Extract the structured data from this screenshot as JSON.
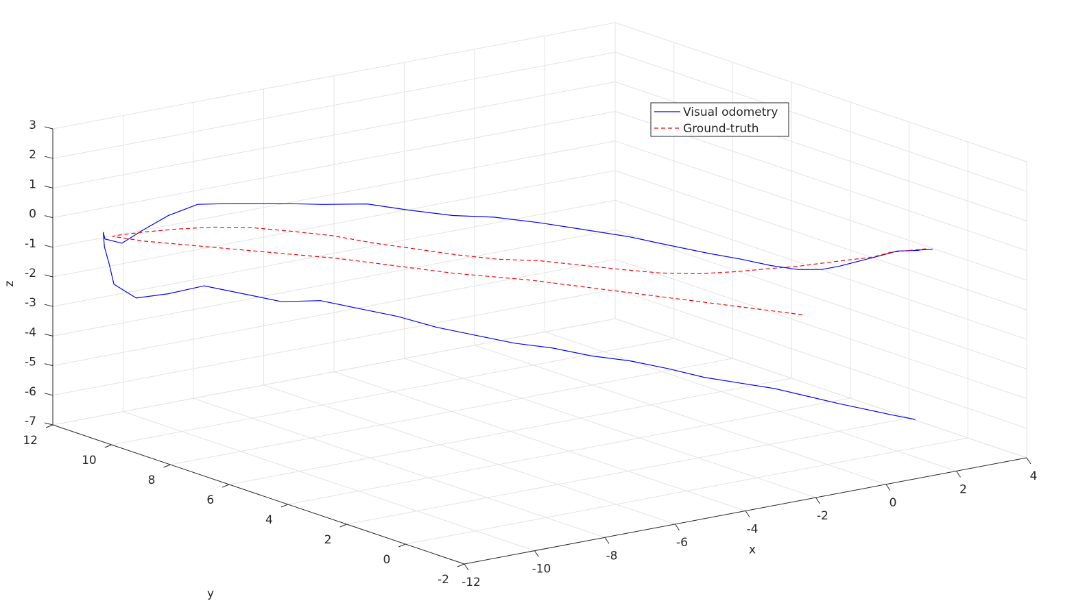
{
  "chart_data": {
    "type": "line",
    "subtype": "3d-trajectory",
    "title": "",
    "xlabel": "x",
    "ylabel": "y",
    "zlabel": "z",
    "xlim": [
      -12,
      4
    ],
    "ylim": [
      -2,
      12
    ],
    "zlim": [
      -7,
      3
    ],
    "x_ticks": [
      -12,
      -10,
      -8,
      -6,
      -4,
      -2,
      0,
      2,
      4
    ],
    "y_ticks": [
      -2,
      0,
      2,
      4,
      6,
      8,
      10,
      12
    ],
    "z_ticks": [
      -7,
      -6,
      -5,
      -4,
      -3,
      -2,
      -1,
      0,
      1,
      2,
      3
    ],
    "grid": true,
    "legend_position": "top-right",
    "series": [
      {
        "name": "Visual odometry",
        "color": "#0000ff",
        "style": "solid",
        "points": [
          [
            3.0,
            0.0,
            -0.4
          ],
          [
            2.8,
            0.2,
            -0.45
          ],
          [
            2.6,
            0.0,
            -0.35
          ],
          [
            2.4,
            0.5,
            -0.5
          ],
          [
            2.0,
            0.6,
            -0.6
          ],
          [
            1.5,
            0.7,
            -0.7
          ],
          [
            1.0,
            0.8,
            -0.8
          ],
          [
            0.6,
            0.9,
            -0.85
          ],
          [
            0.0,
            1.0,
            -0.75
          ],
          [
            -0.6,
            1.2,
            -0.55
          ],
          [
            -1.2,
            1.5,
            -0.3
          ],
          [
            -1.8,
            1.9,
            -0.1
          ],
          [
            -2.4,
            2.5,
            0.1
          ],
          [
            -3.0,
            3.2,
            0.3
          ],
          [
            -3.6,
            4.0,
            0.4
          ],
          [
            -4.2,
            4.8,
            0.5
          ],
          [
            -4.8,
            5.6,
            0.55
          ],
          [
            -5.3,
            6.4,
            0.45
          ],
          [
            -5.9,
            7.2,
            0.5
          ],
          [
            -6.4,
            8.0,
            0.55
          ],
          [
            -7.0,
            8.8,
            0.4
          ],
          [
            -7.6,
            9.6,
            0.3
          ],
          [
            -8.2,
            10.3,
            0.2
          ],
          [
            -8.8,
            10.9,
            0.1
          ],
          [
            -9.3,
            11.3,
            -0.3
          ],
          [
            -9.8,
            11.6,
            -0.8
          ],
          [
            -10.2,
            11.8,
            -1.2
          ],
          [
            -10.6,
            11.9,
            -1.0
          ],
          [
            -10.9,
            11.6,
            -0.6
          ],
          [
            -11.2,
            11.2,
            -0.9
          ],
          [
            -11.4,
            10.8,
            -1.3
          ],
          [
            -11.6,
            10.4,
            -1.8
          ],
          [
            -11.3,
            10.0,
            -2.2
          ],
          [
            -10.8,
            9.5,
            -2.0
          ],
          [
            -10.2,
            9.0,
            -1.7
          ],
          [
            -9.6,
            8.4,
            -1.9
          ],
          [
            -9.0,
            7.8,
            -2.1
          ],
          [
            -8.4,
            7.2,
            -2.0
          ],
          [
            -7.8,
            6.6,
            -2.2
          ],
          [
            -7.2,
            6.0,
            -2.4
          ],
          [
            -6.6,
            5.4,
            -2.7
          ],
          [
            -6.0,
            4.8,
            -2.9
          ],
          [
            -5.4,
            4.2,
            -3.1
          ],
          [
            -4.8,
            3.6,
            -3.2
          ],
          [
            -4.2,
            3.0,
            -3.4
          ],
          [
            -3.6,
            2.4,
            -3.5
          ],
          [
            -3.0,
            1.8,
            -3.7
          ],
          [
            -2.5,
            1.2,
            -3.9
          ],
          [
            -2.0,
            0.6,
            -4.0
          ],
          [
            -1.5,
            0.0,
            -4.1
          ],
          [
            -1.0,
            -0.5,
            -4.3
          ],
          [
            -0.5,
            -1.0,
            -4.5
          ],
          [
            0.0,
            -1.3,
            -4.7
          ],
          [
            0.5,
            -1.6,
            -4.9
          ],
          [
            1.0,
            -1.8,
            -5.1
          ]
        ]
      },
      {
        "name": "Ground-truth",
        "color": "#ff0000",
        "style": "dashed",
        "points": [
          [
            2.9,
            0.1,
            -0.4
          ],
          [
            2.6,
            0.3,
            -0.45
          ],
          [
            2.2,
            0.5,
            -0.5
          ],
          [
            1.8,
            0.6,
            -0.6
          ],
          [
            1.3,
            0.8,
            -0.65
          ],
          [
            0.8,
            1.0,
            -0.7
          ],
          [
            0.2,
            1.2,
            -0.75
          ],
          [
            -0.4,
            1.5,
            -0.8
          ],
          [
            -1.0,
            1.9,
            -0.9
          ],
          [
            -1.6,
            2.4,
            -1.0
          ],
          [
            -2.2,
            3.0,
            -1.05
          ],
          [
            -2.8,
            3.6,
            -1.0
          ],
          [
            -3.4,
            4.3,
            -0.95
          ],
          [
            -4.0,
            5.0,
            -0.9
          ],
          [
            -4.6,
            5.7,
            -0.95
          ],
          [
            -5.2,
            6.4,
            -0.9
          ],
          [
            -5.8,
            7.1,
            -0.8
          ],
          [
            -6.4,
            7.8,
            -0.7
          ],
          [
            -7.0,
            8.5,
            -0.55
          ],
          [
            -7.6,
            9.2,
            -0.5
          ],
          [
            -8.2,
            9.8,
            -0.45
          ],
          [
            -8.8,
            10.4,
            -0.5
          ],
          [
            -9.4,
            10.9,
            -0.6
          ],
          [
            -10.0,
            11.3,
            -0.7
          ],
          [
            -10.5,
            11.6,
            -0.8
          ],
          [
            -10.8,
            11.4,
            -0.7
          ],
          [
            -10.4,
            10.8,
            -0.75
          ],
          [
            -9.8,
            10.2,
            -0.8
          ],
          [
            -9.2,
            9.6,
            -0.85
          ],
          [
            -8.6,
            9.0,
            -0.9
          ],
          [
            -8.0,
            8.4,
            -0.95
          ],
          [
            -7.4,
            7.8,
            -1.0
          ],
          [
            -6.8,
            7.2,
            -1.1
          ],
          [
            -6.2,
            6.6,
            -1.2
          ],
          [
            -5.6,
            6.0,
            -1.3
          ],
          [
            -5.0,
            5.4,
            -1.35
          ],
          [
            -4.4,
            4.8,
            -1.4
          ],
          [
            -3.8,
            4.2,
            -1.5
          ],
          [
            -3.2,
            3.6,
            -1.6
          ],
          [
            -2.6,
            3.0,
            -1.7
          ],
          [
            -2.0,
            2.4,
            -1.8
          ],
          [
            -1.4,
            1.8,
            -1.9
          ],
          [
            -0.8,
            1.2,
            -2.0
          ],
          [
            -0.2,
            0.6,
            -2.1
          ]
        ]
      }
    ]
  }
}
